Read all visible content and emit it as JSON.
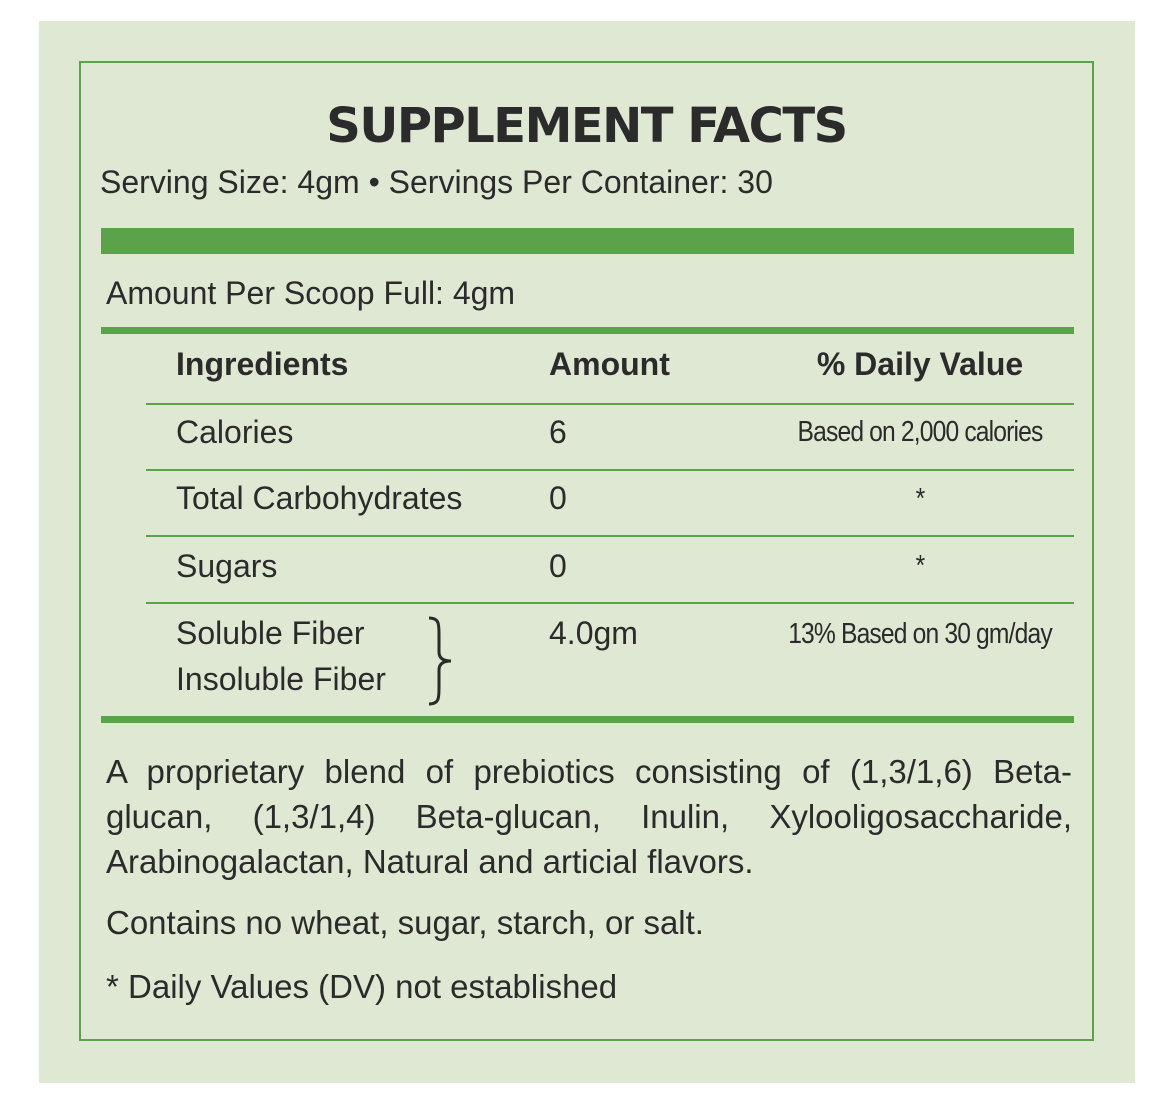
{
  "label": {
    "title": "SUPPLEMENT FACTS",
    "serving_line": "Serving Size: 4gm • Servings Per Container: 30",
    "amount_per": "Amount Per Scoop Full: 4gm"
  },
  "table": {
    "headers": {
      "ingredient": "Ingredients",
      "amount": "Amount",
      "daily_value": "% Daily Value"
    },
    "rows": [
      {
        "ingredient": "Calories",
        "amount": "6",
        "daily_value": "Based on 2,000 calories"
      },
      {
        "ingredient": "Total Carbohydrates",
        "amount": "0",
        "daily_value": "*"
      },
      {
        "ingredient": "Sugars",
        "amount": "0",
        "daily_value": "*"
      },
      {
        "ingredient": "Soluble Fiber",
        "ingredient_line2": "Insoluble Fiber",
        "amount": "4.0gm",
        "daily_value": "13% Based on 30 gm/day"
      }
    ]
  },
  "notes": {
    "blend": "A proprietary blend of prebiotics consisting of (1,3/1,6) Beta-glucan, (1,3/1,4) Beta-glucan, Inulin, Xylooligosaccharide, Arabinogalactan, Natural and articial flavors.",
    "allergens": "Contains no wheat, sugar, starch, or salt.",
    "dv_note": "* Daily Values (DV) not established"
  },
  "colors": {
    "accent_green": "#5ba24b",
    "background": "#dfe8d3",
    "text": "#2b2b2b"
  }
}
